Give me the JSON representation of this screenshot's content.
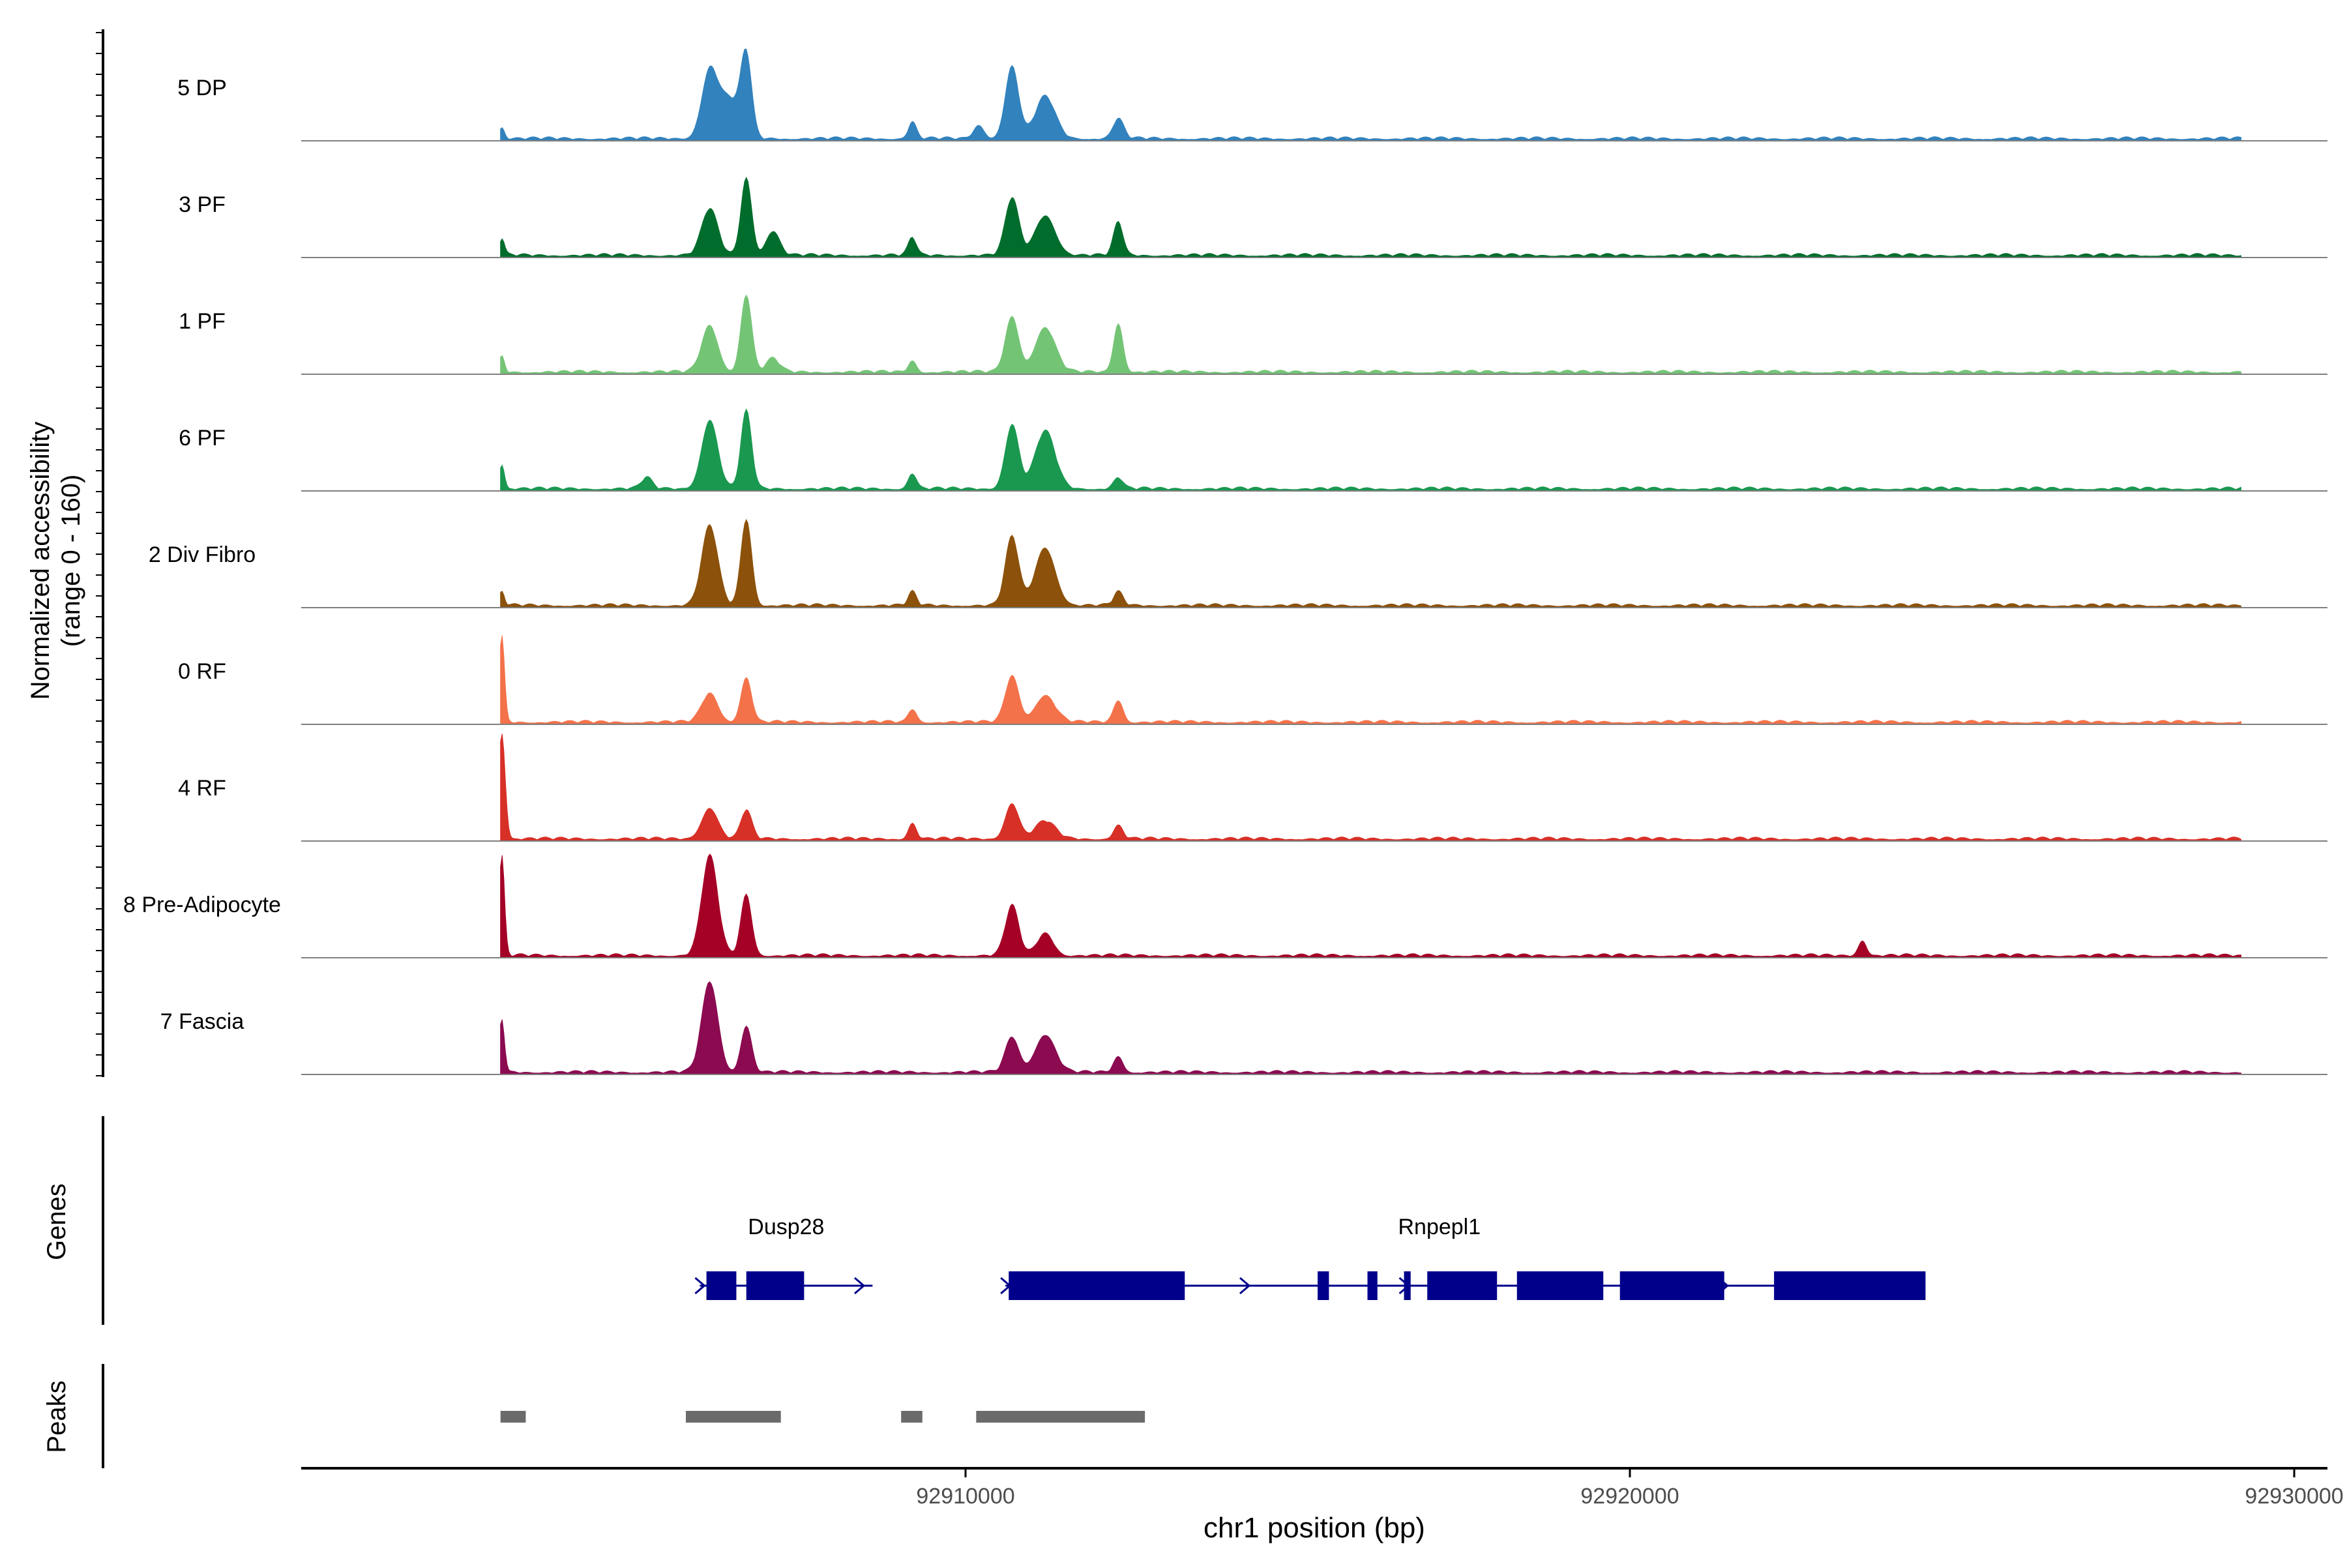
{
  "chart_data": {
    "type": "area",
    "region": "chr1:92903000-92929200",
    "xlabel": "chr1 position (bp)",
    "ylabel_line1": "Normalized accessibility",
    "ylabel_line2": "(range 0 - 160)",
    "xlim": [
      92900000,
      92930500
    ],
    "ylim": [
      0,
      160
    ],
    "x_ticks": [
      {
        "value": 92910000,
        "label": "92910000"
      },
      {
        "value": 92920000,
        "label": "92920000"
      },
      {
        "value": 92930000,
        "label": "92930000"
      }
    ],
    "series": [
      {
        "name": "5 DP",
        "color": "#3182bd",
        "peaks": [
          {
            "pos": 92903020,
            "height": 10,
            "width": 40
          },
          {
            "pos": 92906150,
            "height": 60,
            "width": 120
          },
          {
            "pos": 92906700,
            "height": 72,
            "width": 80
          },
          {
            "pos": 92906450,
            "height": 35,
            "width": 150
          },
          {
            "pos": 92909200,
            "height": 15,
            "width": 60
          },
          {
            "pos": 92910700,
            "height": 65,
            "width": 100
          },
          {
            "pos": 92911200,
            "height": 38,
            "width": 150
          },
          {
            "pos": 92910200,
            "height": 12,
            "width": 80
          },
          {
            "pos": 92912300,
            "height": 18,
            "width": 80
          }
        ]
      },
      {
        "name": "3 PF",
        "color": "#006d2c",
        "peaks": [
          {
            "pos": 92903020,
            "height": 15,
            "width": 40
          },
          {
            "pos": 92906150,
            "height": 42,
            "width": 120
          },
          {
            "pos": 92906700,
            "height": 70,
            "width": 80
          },
          {
            "pos": 92907100,
            "height": 22,
            "width": 100
          },
          {
            "pos": 92909200,
            "height": 16,
            "width": 60
          },
          {
            "pos": 92910700,
            "height": 52,
            "width": 100
          },
          {
            "pos": 92911200,
            "height": 36,
            "width": 150
          },
          {
            "pos": 92912300,
            "height": 30,
            "width": 70
          }
        ]
      },
      {
        "name": "1 PF",
        "color": "#74c476",
        "peaks": [
          {
            "pos": 92903020,
            "height": 14,
            "width": 40
          },
          {
            "pos": 92906150,
            "height": 42,
            "width": 120
          },
          {
            "pos": 92906700,
            "height": 70,
            "width": 80
          },
          {
            "pos": 92907100,
            "height": 12,
            "width": 100
          },
          {
            "pos": 92909200,
            "height": 10,
            "width": 60
          },
          {
            "pos": 92910700,
            "height": 50,
            "width": 100
          },
          {
            "pos": 92911200,
            "height": 40,
            "width": 150
          },
          {
            "pos": 92912300,
            "height": 44,
            "width": 70
          }
        ]
      },
      {
        "name": "6 PF",
        "color": "#1a9850",
        "peaks": [
          {
            "pos": 92903020,
            "height": 22,
            "width": 40
          },
          {
            "pos": 92905200,
            "height": 10,
            "width": 80
          },
          {
            "pos": 92906150,
            "height": 62,
            "width": 120
          },
          {
            "pos": 92906700,
            "height": 70,
            "width": 80
          },
          {
            "pos": 92909200,
            "height": 14,
            "width": 60
          },
          {
            "pos": 92910700,
            "height": 58,
            "width": 100
          },
          {
            "pos": 92911200,
            "height": 52,
            "width": 150
          },
          {
            "pos": 92912300,
            "height": 10,
            "width": 70
          }
        ]
      },
      {
        "name": "2 Div Fibro",
        "color": "#8c510a",
        "peaks": [
          {
            "pos": 92903020,
            "height": 12,
            "width": 40
          },
          {
            "pos": 92906150,
            "height": 72,
            "width": 120
          },
          {
            "pos": 92906700,
            "height": 78,
            "width": 80
          },
          {
            "pos": 92909200,
            "height": 12,
            "width": 60
          },
          {
            "pos": 92910700,
            "height": 62,
            "width": 100
          },
          {
            "pos": 92911200,
            "height": 52,
            "width": 150
          },
          {
            "pos": 92912300,
            "height": 12,
            "width": 70
          }
        ]
      },
      {
        "name": "0 RF",
        "color": "#f4724a",
        "peaks": [
          {
            "pos": 92903020,
            "height": 78,
            "width": 40
          },
          {
            "pos": 92906150,
            "height": 26,
            "width": 120
          },
          {
            "pos": 92906700,
            "height": 40,
            "width": 80
          },
          {
            "pos": 92909200,
            "height": 12,
            "width": 60
          },
          {
            "pos": 92910700,
            "height": 42,
            "width": 100
          },
          {
            "pos": 92911200,
            "height": 24,
            "width": 150
          },
          {
            "pos": 92912300,
            "height": 20,
            "width": 70
          }
        ]
      },
      {
        "name": "4 RF",
        "color": "#d73027",
        "peaks": [
          {
            "pos": 92903020,
            "height": 96,
            "width": 50
          },
          {
            "pos": 92906150,
            "height": 28,
            "width": 120
          },
          {
            "pos": 92906700,
            "height": 26,
            "width": 80
          },
          {
            "pos": 92909200,
            "height": 14,
            "width": 60
          },
          {
            "pos": 92910700,
            "height": 32,
            "width": 100
          },
          {
            "pos": 92911200,
            "height": 16,
            "width": 150
          },
          {
            "pos": 92912300,
            "height": 12,
            "width": 70
          }
        ]
      },
      {
        "name": "8 Pre-Adipocyte",
        "color": "#a50026",
        "peaks": [
          {
            "pos": 92903020,
            "height": 90,
            "width": 40
          },
          {
            "pos": 92906150,
            "height": 90,
            "width": 120
          },
          {
            "pos": 92906700,
            "height": 55,
            "width": 80
          },
          {
            "pos": 92910700,
            "height": 45,
            "width": 100
          },
          {
            "pos": 92911200,
            "height": 20,
            "width": 120
          },
          {
            "pos": 92923500,
            "height": 14,
            "width": 60
          }
        ]
      },
      {
        "name": "7 Fascia",
        "color": "#8b0a50",
        "peaks": [
          {
            "pos": 92903020,
            "height": 48,
            "width": 40
          },
          {
            "pos": 92906150,
            "height": 82,
            "width": 120
          },
          {
            "pos": 92906700,
            "height": 42,
            "width": 80
          },
          {
            "pos": 92910700,
            "height": 32,
            "width": 100
          },
          {
            "pos": 92911200,
            "height": 34,
            "width": 150
          },
          {
            "pos": 92912300,
            "height": 14,
            "width": 70
          }
        ]
      }
    ],
    "genes_label": "Genes",
    "genes": [
      {
        "name": "Dusp28",
        "start": 92906000,
        "end": 92908600,
        "exons": [
          [
            92906100,
            92906550
          ],
          [
            92906700,
            92907570
          ]
        ]
      },
      {
        "name": "Rnpepl1",
        "start": 92910600,
        "end": 92924450,
        "exons": [
          [
            92910650,
            92913300
          ],
          [
            92915300,
            92915470
          ],
          [
            92916050,
            92916200
          ],
          [
            92916600,
            92916700
          ],
          [
            92916950,
            92918000
          ],
          [
            92918300,
            92919600
          ],
          [
            92919850,
            92921420
          ],
          [
            92922170,
            92924450
          ]
        ]
      }
    ],
    "peaks_label": "Peaks",
    "peak_regions": [
      [
        92903000,
        92903380
      ],
      [
        92905790,
        92907220
      ],
      [
        92909030,
        92909350
      ],
      [
        92910160,
        92912700
      ]
    ]
  }
}
